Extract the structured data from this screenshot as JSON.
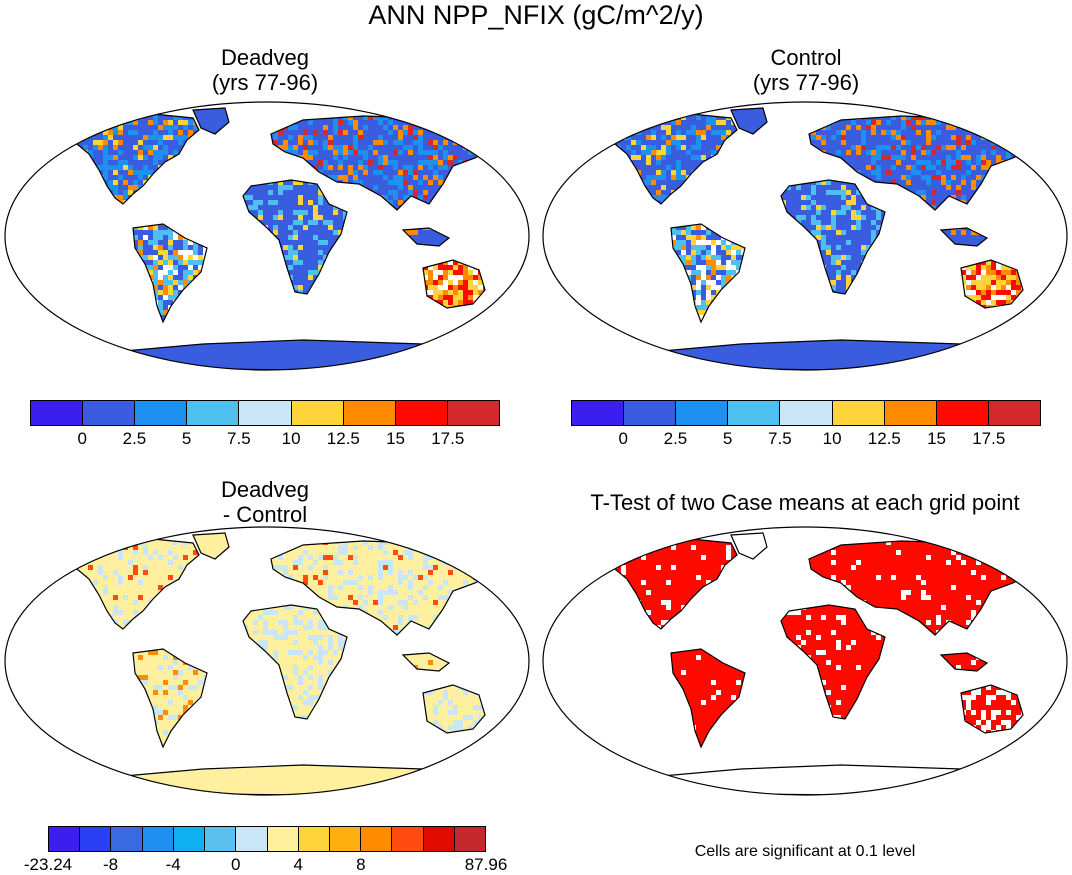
{
  "main_title": "ANN NPP_NFIX (gC/m^2/y)",
  "panels": {
    "top_left": {
      "title_line1": "Deadveg",
      "title_line2": "(yrs 77-96)"
    },
    "top_right": {
      "title_line1": "Control",
      "title_line2": "(yrs 77-96)"
    },
    "bottom_left": {
      "title_line1": "Deadveg",
      "title_line2": "- Control"
    },
    "bottom_right": {
      "title_line1": "T-Test of two Case means at each grid point"
    }
  },
  "colorbar_top": {
    "colors": [
      "#3b1ff0",
      "#3a5de0",
      "#1e90f0",
      "#4fbff0",
      "#c8e6f5",
      "#ffd33a",
      "#ff8c00",
      "#ff0a00",
      "#d4282c"
    ],
    "tick_labels": [
      "0",
      "2.5",
      "5",
      "7.5",
      "10",
      "12.5",
      "15",
      "17.5"
    ]
  },
  "colorbar_bottom": {
    "colors": [
      "#3b1ff0",
      "#2b3ff5",
      "#3a6ae0",
      "#2090f0",
      "#10b0f0",
      "#5cc0ee",
      "#c8e6f5",
      "#fff0a0",
      "#ffd33a",
      "#ffb010",
      "#ff8c00",
      "#ff4a10",
      "#e00a00",
      "#c4282c"
    ],
    "tick_labels": [
      "-23.24",
      "-8",
      "-4",
      "0",
      "4",
      "8",
      "87.96"
    ]
  },
  "footnote": "Cells are significant at 0.1 level",
  "map_colors": {
    "ocean": "#ffffff",
    "land_abs": "#3a5de0",
    "diff_land": "#fff0a0",
    "sig_land": "#ff0a00",
    "outline": "#000000"
  }
}
